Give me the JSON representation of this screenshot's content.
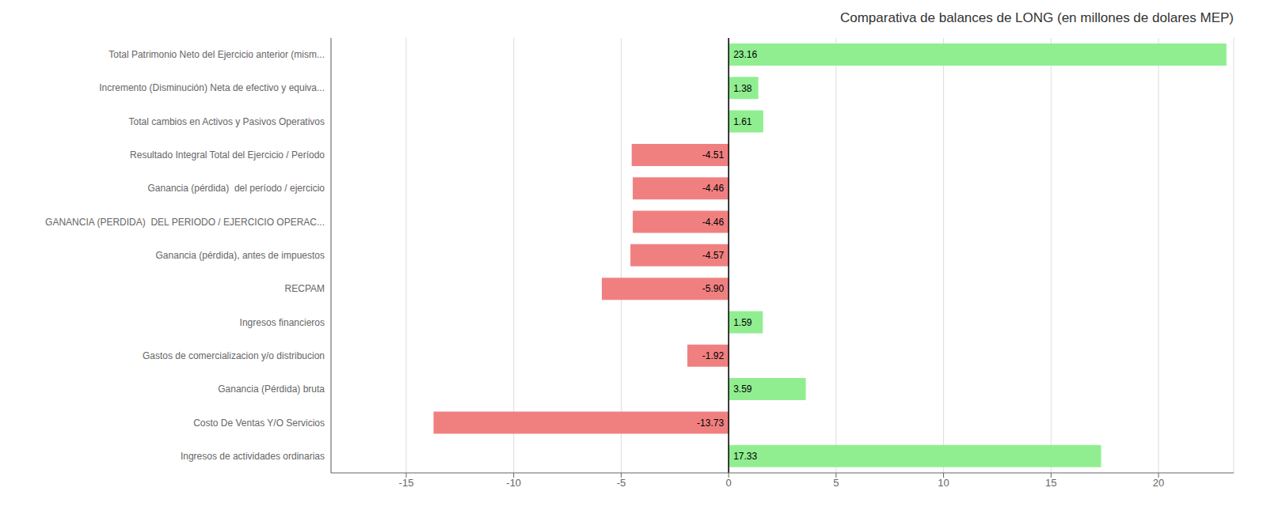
{
  "chart_data": {
    "type": "bar",
    "orientation": "horizontal",
    "title": "Comparativa de balances de LONG (en millones de dolares MEP)",
    "categories": [
      "Ingresos de actividades ordinarias",
      "Costo De Ventas Y/O Servicios",
      "Ganancia (Pérdida) bruta",
      "Gastos de comercializacion y/o distribucion",
      "Ingresos financieros",
      "RECPAM",
      "Ganancia (pérdida), antes de impuestos",
      "GANANCIA (PERDIDA)  DEL PERIODO / EJERCICIO OPERAC...",
      "Ganancia (pérdida)  del período / ejercicio",
      "Resultado Integral Total del Ejercicio / Período",
      "Total cambios en Activos y Pasivos Operativos",
      "Incremento (Disminución) Neta de efectivo y equiva...",
      "Total Patrimonio Neto del Ejercicio anterior (mism..."
    ],
    "values": [
      17.33,
      -13.73,
      3.59,
      -1.92,
      1.59,
      -5.9,
      -4.57,
      -4.46,
      -4.46,
      -4.51,
      1.61,
      1.38,
      23.16
    ],
    "value_labels": [
      "17.33",
      "-13.73",
      "3.59",
      "-1.92",
      "1.59",
      "-5.90",
      "-4.57",
      "-4.46",
      "-4.46",
      "-4.51",
      "1.61",
      "1.38",
      "23.16"
    ],
    "data_labels": true,
    "colors": [
      "#90EE90",
      "#F08080",
      "#90EE90",
      "#F08080",
      "#90EE90",
      "#F08080",
      "#F08080",
      "#F08080",
      "#F08080",
      "#F08080",
      "#90EE90",
      "#90EE90",
      "#90EE90"
    ],
    "xlim": [
      -18.5,
      23.5
    ],
    "xticks": [
      -15,
      -10,
      -5,
      0,
      5,
      10,
      15,
      20
    ],
    "grid": true
  }
}
